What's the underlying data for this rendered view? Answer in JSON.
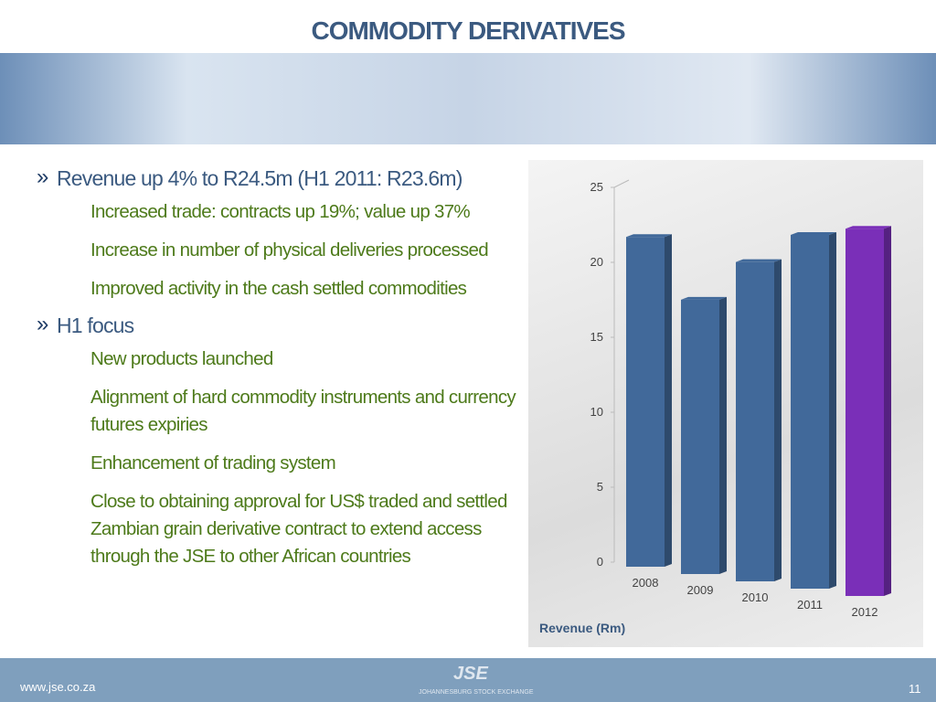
{
  "header": {
    "title": "COMMODITY DERIVATIVES"
  },
  "bullets": [
    {
      "text": "Revenue up 4% to R24.5m (H1 2011: R23.6m)",
      "items": [
        "Increased trade: contracts up 19%; value up 37%",
        "Increase in number of physical deliveries processed",
        "Improved activity in the cash settled commodities"
      ]
    },
    {
      "text": "H1 focus",
      "items": [
        "New products launched",
        "Alignment of hard commodity instruments and currency futures expiries",
        "Enhancement of trading system",
        "Close to obtaining approval for US$ traded and settled Zambian grain derivative contract to extend access through the  JSE to other African countries"
      ]
    }
  ],
  "chart_data": {
    "type": "bar",
    "x_label": "Revenue (Rm)",
    "categories": [
      "2008",
      "2009",
      "2010",
      "2011",
      "2012"
    ],
    "values": [
      22,
      18.3,
      21.3,
      23.6,
      24.5
    ],
    "colors": [
      "#41699a",
      "#41699a",
      "#41699a",
      "#41699a",
      "#7a2fb8"
    ],
    "ylim": [
      0,
      25
    ],
    "yticks": [
      0,
      5,
      10,
      15,
      20,
      25
    ]
  },
  "footer": {
    "url": "www.jse.co.za",
    "logo": "JSE",
    "logo_caption": "JOHANNESBURG STOCK EXCHANGE",
    "page": "11"
  }
}
